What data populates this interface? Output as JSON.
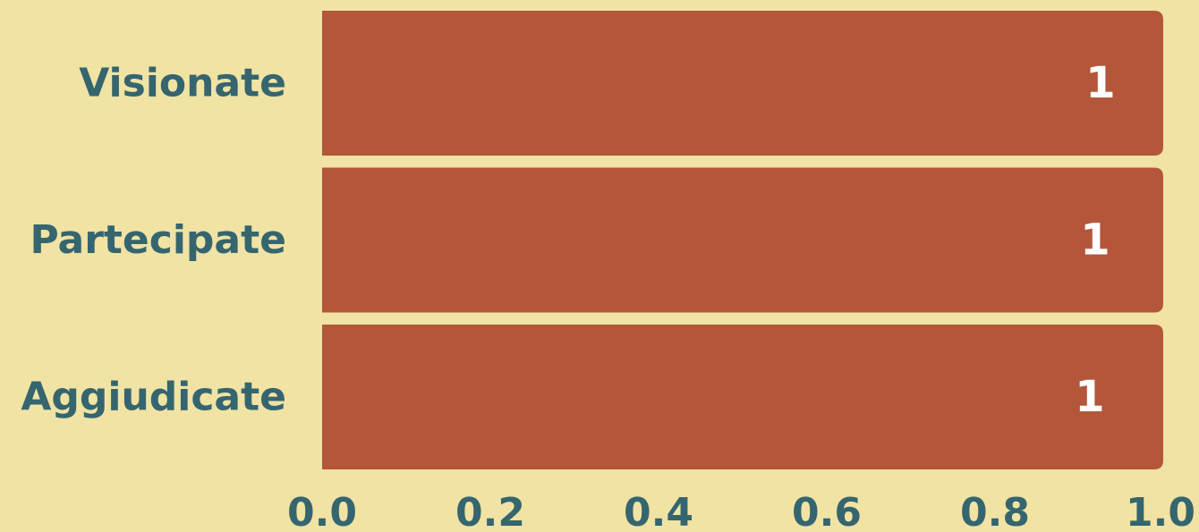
{
  "chart_data": {
    "type": "bar",
    "orientation": "horizontal",
    "categories": [
      "Visionate",
      "Partecipate",
      "Aggiudicate"
    ],
    "values": [
      1,
      1,
      1
    ],
    "data_labels": [
      "1",
      "1",
      "1"
    ],
    "xlim": [
      0,
      1
    ],
    "x_ticks": [
      "0.0",
      "0.2",
      "0.4",
      "0.6",
      "0.8",
      "1.0"
    ],
    "title": "",
    "xlabel": "",
    "ylabel": "",
    "grid": false,
    "legend": "none"
  },
  "colors": {
    "background": "#f0e3a4",
    "bar": "#b3563a",
    "category_text": "#35656f",
    "tick_text": "#35656f",
    "data_label_text": "#ffffff"
  }
}
